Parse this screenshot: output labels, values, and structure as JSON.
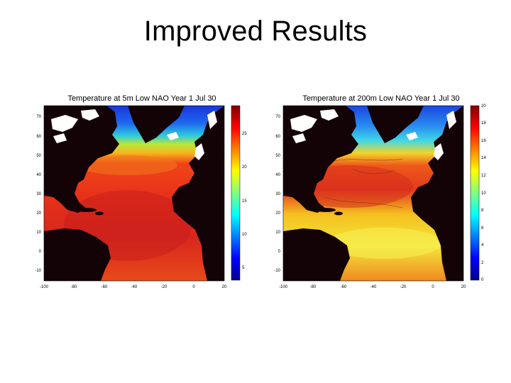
{
  "slide": {
    "title": "Improved Results"
  },
  "panels": [
    {
      "title": "Temperature at 5m Low NAO Year 1 Jul 30",
      "x_ticks": [
        "-100",
        "-80",
        "-60",
        "-40",
        "-20",
        "0",
        "20"
      ],
      "y_ticks": [
        "70",
        "60",
        "50",
        "40",
        "30",
        "20",
        "10",
        "0",
        "-10"
      ],
      "colorbar_ticks": [
        "25",
        "20",
        "15",
        "10",
        "5"
      ],
      "colorbar_range": [
        3,
        29
      ]
    },
    {
      "title": "Temperature at 200m Low NAO Year 1 Jul 30",
      "x_ticks": [
        "-100",
        "-80",
        "-60",
        "-40",
        "-20",
        "0",
        "20"
      ],
      "y_ticks": [
        "70",
        "60",
        "50",
        "40",
        "30",
        "20",
        "10",
        "0",
        "-10"
      ],
      "colorbar_ticks": [
        "20",
        "18",
        "16",
        "14",
        "12",
        "10",
        "8",
        "6",
        "4",
        "2",
        "0"
      ],
      "colorbar_range": [
        0,
        20
      ]
    }
  ],
  "colors": {
    "land": "#140306",
    "ice": "#ffffff",
    "jet_low": "#00008f",
    "jet_high": "#800000"
  }
}
